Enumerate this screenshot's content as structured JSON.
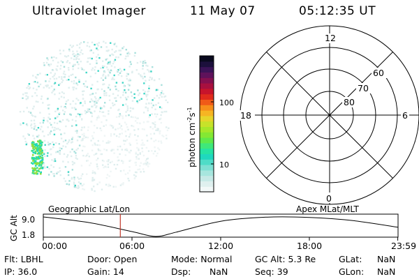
{
  "header": {
    "instrument": "Ultraviolet Imager",
    "date": "11 May 07",
    "time": "05:12:35 UT"
  },
  "colorbar": {
    "label": "photon cm",
    "label_exp1": "-2",
    "label_s": "s",
    "label_exp2": "-1",
    "ticks": [
      "100",
      "10"
    ],
    "colors": [
      "#f2f8f8",
      "#dff0ef",
      "#c6e9e6",
      "#a7e6de",
      "#7fe0d3",
      "#4fdcc7",
      "#1fd8be",
      "#26e3a4",
      "#3fe87a",
      "#5fe94b",
      "#84e833",
      "#a7e72a",
      "#c7e22a",
      "#e6d52b",
      "#f6b523",
      "#f78f1b",
      "#f05a18",
      "#e02b1c",
      "#c7142c",
      "#a8103f",
      "#84104f",
      "#5e125b",
      "#3b1357",
      "#1c103c",
      "#0a0a1e"
    ]
  },
  "polar_plot": {
    "labels": {
      "top": "12",
      "bottom": "0",
      "left": "18",
      "right": "6",
      "lat_60": "60",
      "lat_70": "70",
      "lat_80": "80"
    }
  },
  "timeline": {
    "ylabel": "GC Alt",
    "left_title": "Geographic Lat/Lon",
    "right_title": "Apex MLat/MLT",
    "y_ticks": [
      "9.0",
      "1.8"
    ],
    "x_ticks": [
      "00:00",
      "06:00",
      "12:00",
      "18:00",
      "23:59"
    ],
    "marker_time": "05:12:35"
  },
  "chart_data": {
    "type": "line",
    "title": "",
    "xlabel": "",
    "ylabel": "GC Alt",
    "x": [
      0,
      3,
      6,
      7.6,
      9,
      12,
      15,
      18,
      21,
      23.98
    ],
    "values": [
      9.0,
      7.0,
      3.6,
      1.8,
      3.4,
      7.4,
      8.9,
      8.8,
      7.6,
      5.2
    ],
    "ylim": [
      1.8,
      9.0
    ],
    "x_tick_labels": [
      "00:00",
      "06:00",
      "12:00",
      "18:00",
      "23:59"
    ]
  },
  "footer": {
    "row1": {
      "flt": "Flt: LBHL",
      "door": "Door: Open",
      "mode": "Mode: Normal",
      "gcalt": "GC Alt: 5.3 Re",
      "glat_label": "GLat:",
      "glat_value": "NaN"
    },
    "row2": {
      "ip": "IP: 36.0",
      "gain": "Gain: 14",
      "dsp_label": "Dsp:",
      "dsp_value": "NaN",
      "seq": "Seq: 39",
      "glon_label": "GLon:",
      "glon_value": "NaN"
    }
  }
}
